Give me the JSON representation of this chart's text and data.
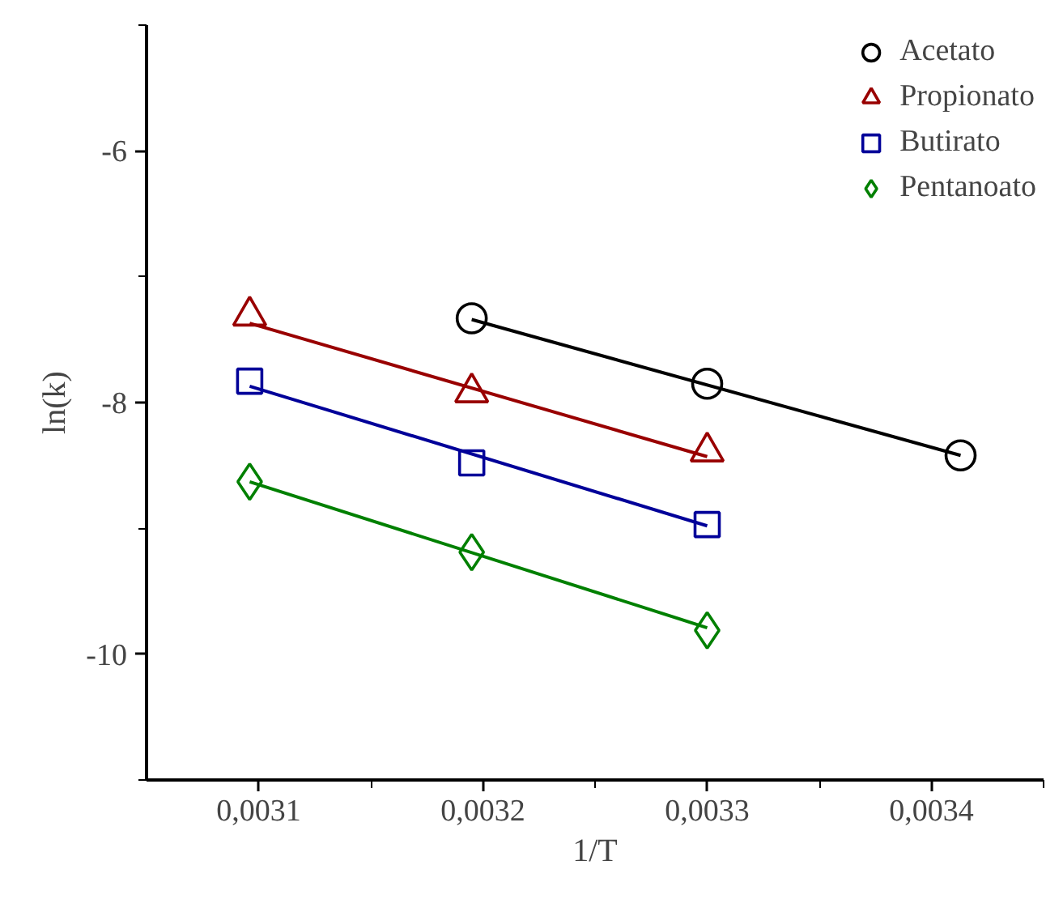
{
  "chart_data": {
    "type": "scatter",
    "xlabel": "1/T",
    "ylabel": "ln(k)",
    "xlim": [
      0.00305,
      0.00345
    ],
    "ylim": [
      -11,
      -5
    ],
    "xticks": [
      {
        "value": 0.0031,
        "label": "0,0031"
      },
      {
        "value": 0.0032,
        "label": "0,0032"
      },
      {
        "value": 0.0033,
        "label": "0,0033"
      },
      {
        "value": 0.0034,
        "label": "0,0034"
      }
    ],
    "yticks": [
      -10,
      -8,
      -6
    ],
    "grid": false,
    "legend": "top right",
    "series": [
      {
        "name": "Acetato",
        "color": "#000000",
        "marker": "circle",
        "x": [
          0.003195,
          0.0033,
          0.003413
        ],
        "values": [
          -7.33,
          -7.85,
          -8.42
        ]
      },
      {
        "name": "Propionato",
        "color": "#990000",
        "marker": "triangle",
        "x": [
          0.003096,
          0.003195,
          0.0033
        ],
        "values": [
          -7.31,
          -7.92,
          -8.39
        ]
      },
      {
        "name": "Butirato",
        "color": "#000099",
        "marker": "square",
        "x": [
          0.003096,
          0.003195,
          0.0033
        ],
        "values": [
          -7.83,
          -8.48,
          -8.97
        ]
      },
      {
        "name": "Pentanoato",
        "color": "#008000",
        "marker": "diamond",
        "x": [
          0.003096,
          0.003195,
          0.0033
        ],
        "values": [
          -8.63,
          -9.19,
          -9.81
        ]
      },
      {
        "type": "line",
        "color": "#000000",
        "x": [
          0.003195,
          0.003413
        ],
        "values": [
          -7.34,
          -8.42
        ]
      },
      {
        "type": "line",
        "color": "#990000",
        "x": [
          0.003096,
          0.0033
        ],
        "values": [
          -7.37,
          -8.43
        ]
      },
      {
        "type": "line",
        "color": "#000099",
        "x": [
          0.003096,
          0.0033
        ],
        "values": [
          -7.87,
          -8.98
        ]
      },
      {
        "type": "line",
        "color": "#008000",
        "x": [
          0.003096,
          0.0033
        ],
        "values": [
          -8.63,
          -9.79
        ]
      }
    ]
  }
}
